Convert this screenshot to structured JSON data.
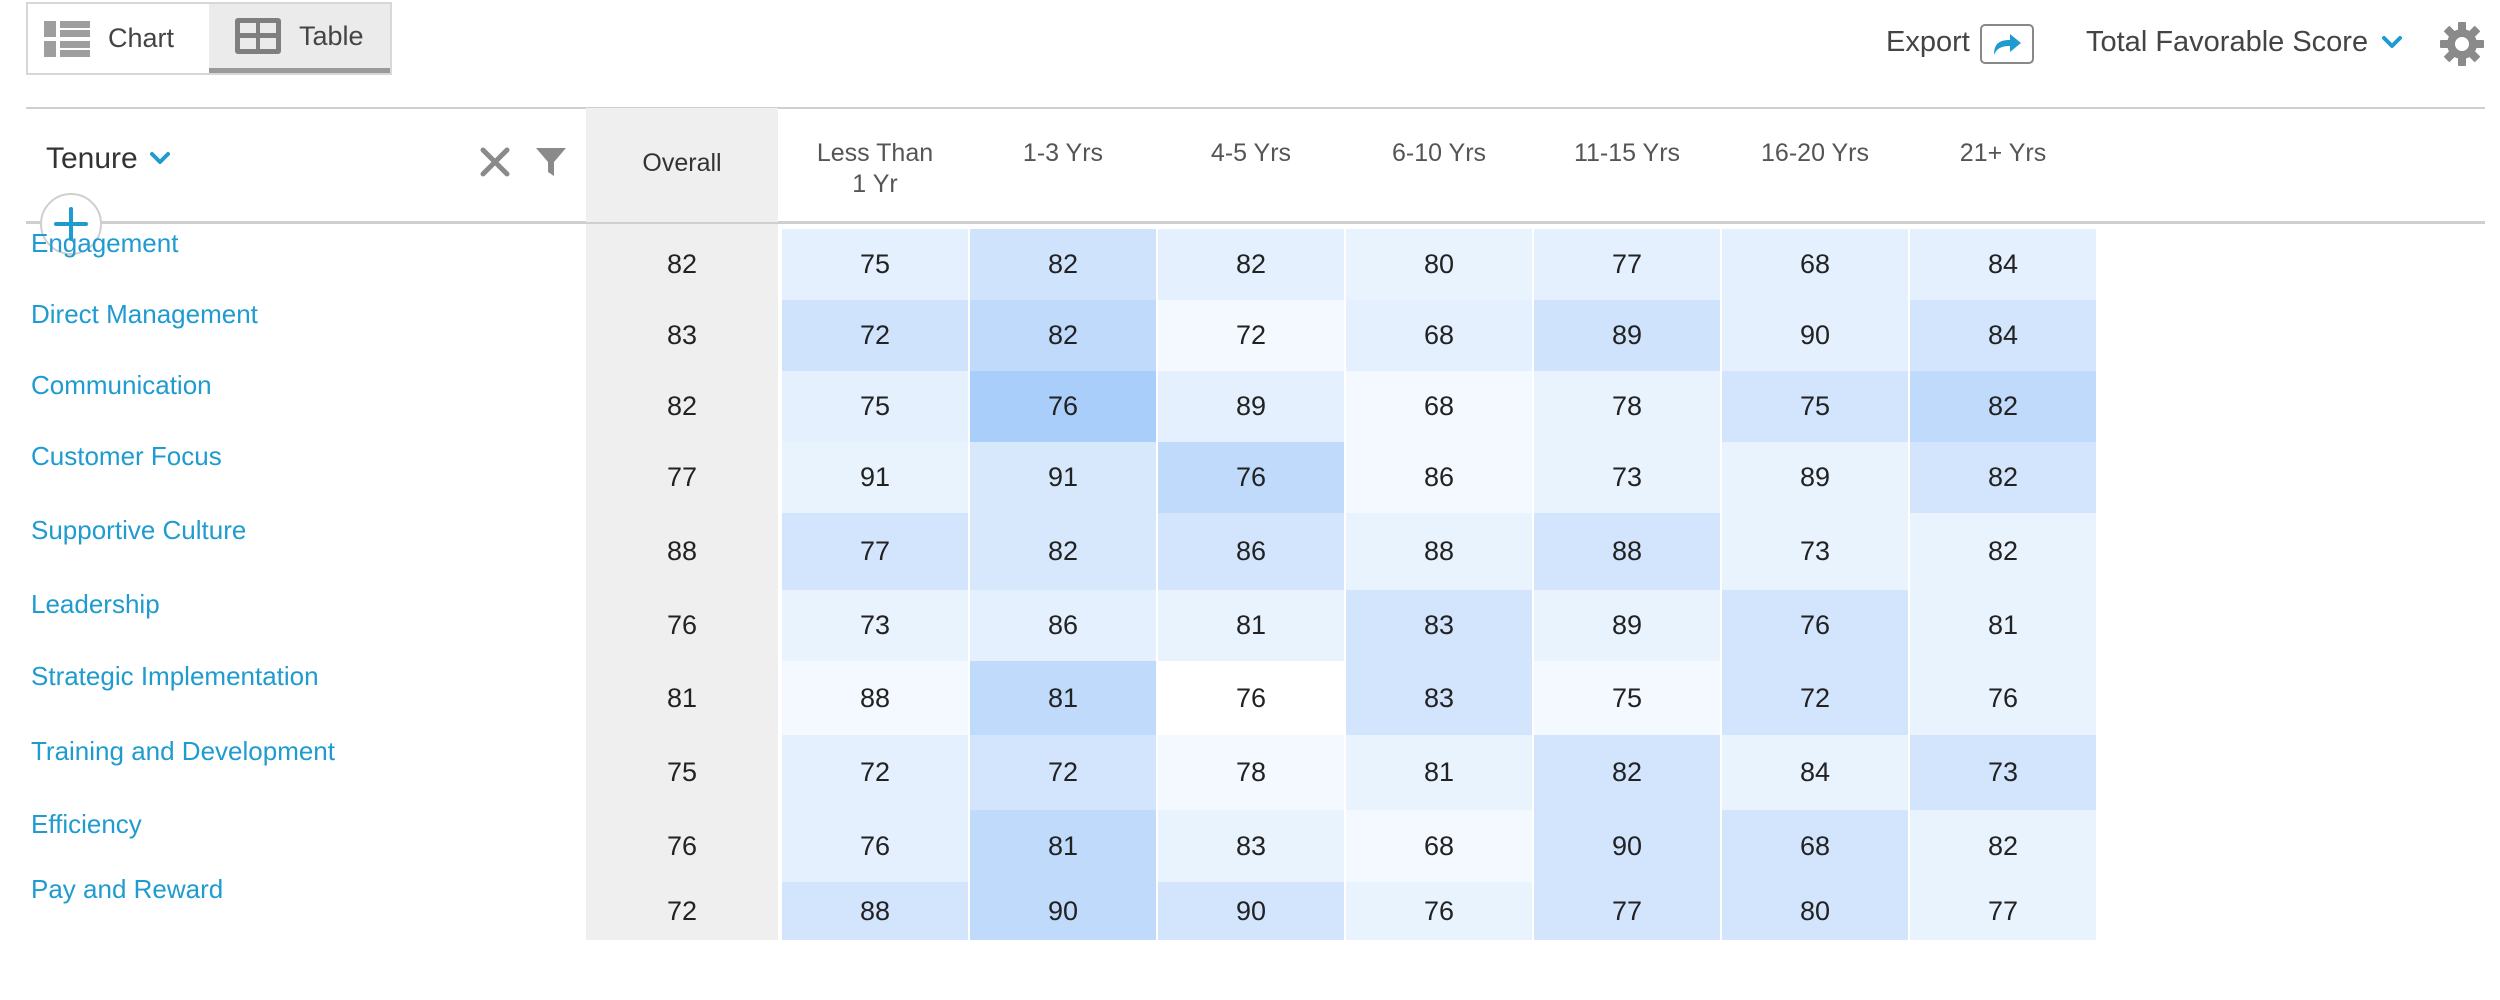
{
  "toolbar": {
    "chart_label": "Chart",
    "table_label": "Table",
    "export_label": "Export",
    "score_label": "Total Favorable Score"
  },
  "filter": {
    "dimension_label": "Tenure"
  },
  "table": {
    "overall_header": "Overall",
    "columns": [
      {
        "line1": "Less Than",
        "line2": "1 Yr"
      },
      {
        "line1": "1-3 Yrs",
        "line2": ""
      },
      {
        "line1": "4-5 Yrs",
        "line2": ""
      },
      {
        "line1": "6-10 Yrs",
        "line2": ""
      },
      {
        "line1": "11-15 Yrs",
        "line2": ""
      },
      {
        "line1": "16-20 Yrs",
        "line2": ""
      },
      {
        "line1": "21+ Yrs",
        "line2": ""
      }
    ],
    "rows": [
      {
        "label": "Engagement",
        "overall": "82",
        "values": [
          "75",
          "82",
          "82",
          "80",
          "77",
          "68",
          "84"
        ]
      },
      {
        "label": "Direct Management",
        "overall": "83",
        "values": [
          "72",
          "82",
          "72",
          "68",
          "89",
          "90",
          "84"
        ]
      },
      {
        "label": "Communication",
        "overall": "82",
        "values": [
          "75",
          "76",
          "89",
          "68",
          "78",
          "75",
          "82"
        ]
      },
      {
        "label": "Customer Focus",
        "overall": "77",
        "values": [
          "91",
          "91",
          "76",
          "86",
          "73",
          "89",
          "82"
        ]
      },
      {
        "label": "Supportive Culture",
        "overall": "88",
        "values": [
          "77",
          "82",
          "86",
          "88",
          "88",
          "73",
          "82"
        ]
      },
      {
        "label": "Leadership",
        "overall": "76",
        "values": [
          "73",
          "86",
          "81",
          "83",
          "89",
          "76",
          "81"
        ]
      },
      {
        "label": "Strategic Implementation",
        "overall": "81",
        "values": [
          "88",
          "81",
          "76",
          "83",
          "75",
          "72",
          "76"
        ]
      },
      {
        "label": "Training and Development",
        "overall": "75",
        "values": [
          "72",
          "72",
          "78",
          "81",
          "82",
          "84",
          "73"
        ]
      },
      {
        "label": "Efficiency",
        "overall": "76",
        "values": [
          "76",
          "81",
          "83",
          "68",
          "90",
          "68",
          "82"
        ]
      },
      {
        "label": "Pay and Reward",
        "overall": "72",
        "values": [
          "88",
          "90",
          "90",
          "76",
          "77",
          "80",
          "77"
        ]
      }
    ],
    "heat_shades": [
      [
        "#e4f0fe",
        "#cfe3fc",
        "#e4f0fe",
        "#e9f3fe",
        "#e4f0fe",
        "#e4f0fe",
        "#e4f0fe"
      ],
      [
        "#cfe3fc",
        "#bfdafb",
        "#f4f9ff",
        "#e4f0fe",
        "#cfe3fc",
        "#e4f0fe",
        "#d2e5fd"
      ],
      [
        "#e4f0fe",
        "#a9cefa",
        "#e4f0fe",
        "#f4f9ff",
        "#e9f3fe",
        "#d2e5fd",
        "#bfdafb"
      ],
      [
        "#e9f3fe",
        "#d7e8fd",
        "#bfdafb",
        "#f4f9ff",
        "#e9f3fe",
        "#e9f3fe",
        "#d2e5fd"
      ],
      [
        "#d2e5fd",
        "#d7e8fd",
        "#d2e5fd",
        "#e9f3fe",
        "#d2e5fd",
        "#e9f3fe",
        "#e9f3fe"
      ],
      [
        "#e9f3fe",
        "#e4f0fe",
        "#e9f3fe",
        "#d2e5fd",
        "#e9f3fe",
        "#d2e5fd",
        "#e9f3fe"
      ],
      [
        "#f4f9ff",
        "#bfdafb",
        "#ffffff",
        "#d2e5fd",
        "#f4f9ff",
        "#d2e5fd",
        "#e9f3fe"
      ],
      [
        "#e4f0fe",
        "#d2e5fd",
        "#f4f9ff",
        "#e9f3fe",
        "#d2e5fd",
        "#e9f3fe",
        "#d2e5fd"
      ],
      [
        "#e4f0fe",
        "#bfdafb",
        "#e9f3fe",
        "#f4f9ff",
        "#d2e5fd",
        "#d2e5fd",
        "#e9f3fe"
      ],
      [
        "#d2e5fd",
        "#bfdafb",
        "#d2e5fd",
        "#e9f3fe",
        "#d2e5fd",
        "#d2e5fd",
        "#e9f3fe"
      ]
    ]
  },
  "colors": {
    "accent": "#1f9bd0",
    "overall_column": "#efefef"
  },
  "icons": [
    "chart-view-icon",
    "table-view-icon",
    "share-arrow-icon",
    "chevron-down-icon",
    "gear-icon",
    "close-icon",
    "filter-icon",
    "plus-icon"
  ]
}
